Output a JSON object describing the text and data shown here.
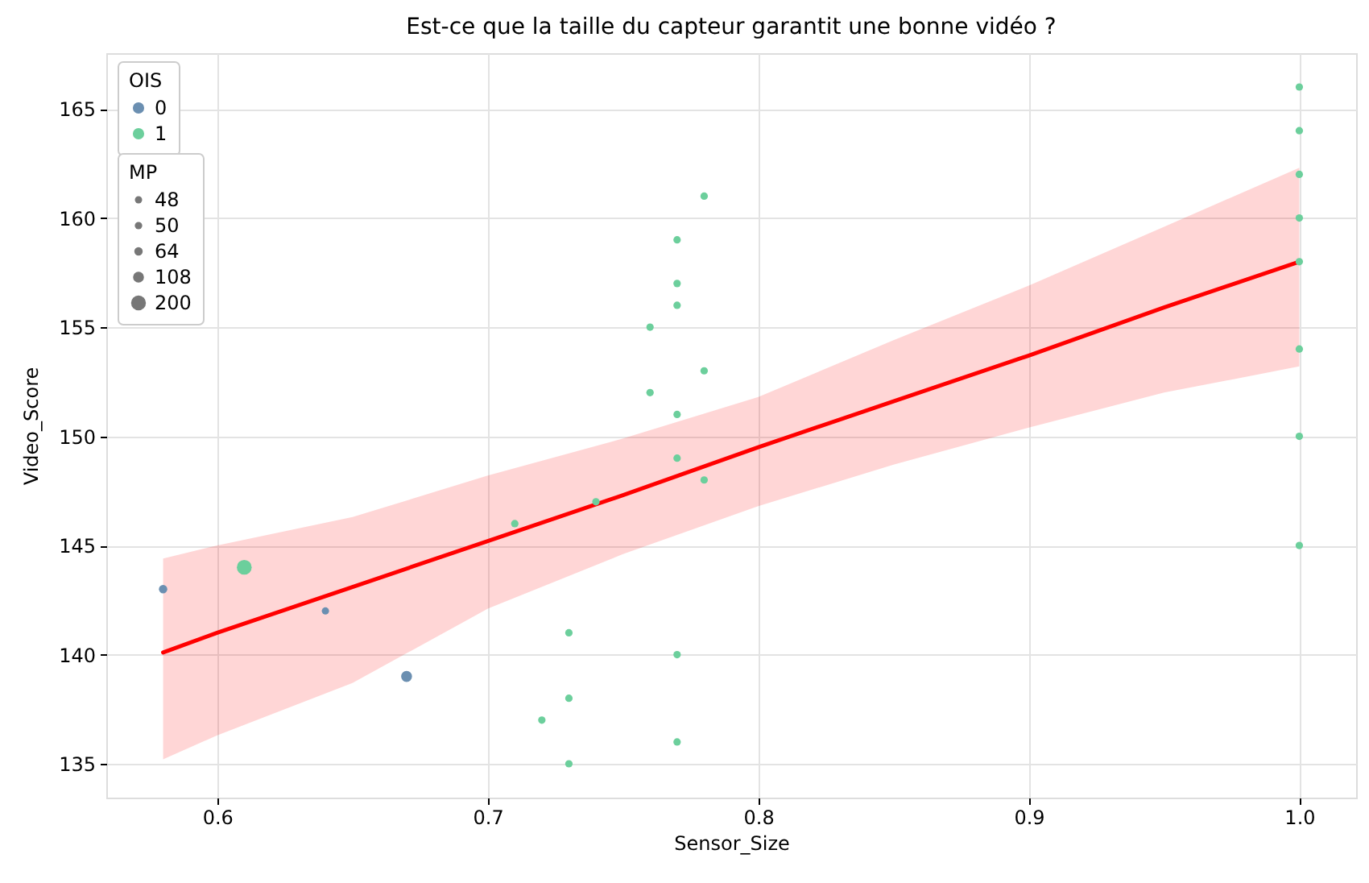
{
  "chart_data": {
    "type": "bubble",
    "title": "Est-ce que la taille du capteur garantit une bonne vidéo ?",
    "xlabel": "Sensor_Size",
    "ylabel": "Video_Score",
    "legend_title": [
      "OIS",
      "MP"
    ],
    "series": [
      {
        "name": "0",
        "color": "#6b8fb1",
        "x": [
          0.58,
          0.64,
          0.67
        ],
        "values": [
          143,
          142,
          139
        ],
        "sizes": [
          64,
          48,
          108
        ]
      },
      {
        "name": "1",
        "color": "#6ccf9c",
        "x": [
          0.61,
          0.71,
          0.72,
          0.73,
          0.73,
          0.73,
          0.74,
          0.76,
          0.76,
          0.77,
          0.77,
          0.77,
          0.77,
          0.77,
          0.77,
          0.77,
          0.78,
          0.78,
          0.78,
          1.0,
          1.0,
          1.0,
          1.0,
          1.0,
          1.0,
          1.0,
          1.0
        ],
        "values": [
          144,
          146,
          137,
          141,
          138,
          135,
          147,
          155,
          152,
          159,
          157,
          156,
          151,
          149,
          140,
          136,
          161,
          153,
          148,
          166,
          164,
          162,
          160,
          158,
          154,
          150,
          145
        ],
        "sizes": [
          200,
          50,
          50,
          50,
          50,
          50,
          50,
          50,
          50,
          50,
          50,
          50,
          50,
          50,
          50,
          50,
          50,
          50,
          50,
          50,
          50,
          50,
          50,
          50,
          50,
          50,
          50
        ]
      },
      {
        "type": "line",
        "color": "#ff0000",
        "marker": "none",
        "x": [
          0.58,
          0.6,
          0.65,
          0.7,
          0.75,
          0.8,
          0.85,
          0.9,
          0.95,
          1.0
        ],
        "values": [
          140.1,
          141.0,
          143.1,
          145.2,
          147.3,
          149.5,
          151.6,
          153.7,
          155.9,
          158.0
        ],
        "lower": [
          135.2,
          136.3,
          138.7,
          142.1,
          144.6,
          146.8,
          148.7,
          150.4,
          152.0,
          153.2
        ],
        "upper": [
          144.4,
          145.0,
          146.3,
          148.2,
          149.9,
          151.8,
          154.4,
          156.9,
          159.6,
          162.3
        ]
      }
    ],
    "size_legend": [
      48,
      50,
      64,
      108,
      200
    ],
    "xlim": [
      0.559,
      1.021
    ],
    "ylim": [
      133.45,
      167.55
    ],
    "xticks": [
      0.6,
      0.7,
      0.8,
      0.9,
      {
        "value": 1.0,
        "label": "1.0"
      }
    ],
    "yticks": [
      135,
      140,
      145,
      150,
      155,
      160,
      165
    ],
    "grid": true,
    "legend": "top left",
    "marker": "circle"
  }
}
